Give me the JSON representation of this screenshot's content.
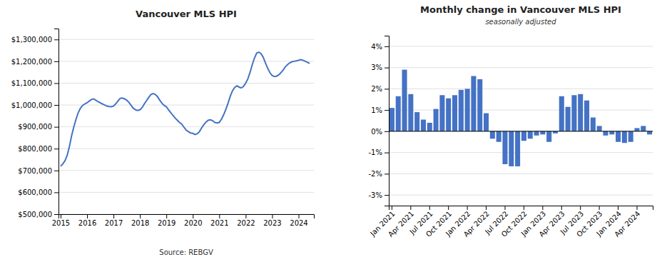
{
  "chart_data": [
    {
      "type": "line",
      "title": "Vancouver MLS HPI",
      "annotations": [
        "Source: REBGV"
      ],
      "color": "#4472C4",
      "x": [
        2015.0,
        2015.083,
        2015.167,
        2015.25,
        2015.333,
        2015.417,
        2015.5,
        2015.583,
        2015.667,
        2015.75,
        2015.833,
        2015.917,
        2016.0,
        2016.083,
        2016.167,
        2016.25,
        2016.333,
        2016.417,
        2016.5,
        2016.583,
        2016.667,
        2016.75,
        2016.833,
        2016.917,
        2017.0,
        2017.083,
        2017.167,
        2017.25,
        2017.333,
        2017.417,
        2017.5,
        2017.583,
        2017.667,
        2017.75,
        2017.833,
        2017.917,
        2018.0,
        2018.083,
        2018.167,
        2018.25,
        2018.333,
        2018.417,
        2018.5,
        2018.583,
        2018.667,
        2018.75,
        2018.833,
        2018.917,
        2019.0,
        2019.083,
        2019.167,
        2019.25,
        2019.333,
        2019.417,
        2019.5,
        2019.583,
        2019.667,
        2019.75,
        2019.833,
        2019.917,
        2020.0,
        2020.083,
        2020.167,
        2020.25,
        2020.333,
        2020.417,
        2020.5,
        2020.583,
        2020.667,
        2020.75,
        2020.833,
        2020.917,
        2021.0,
        2021.083,
        2021.167,
        2021.25,
        2021.333,
        2021.417,
        2021.5,
        2021.583,
        2021.667,
        2021.75,
        2021.833,
        2021.917,
        2022.0,
        2022.083,
        2022.167,
        2022.25,
        2022.333,
        2022.417,
        2022.5,
        2022.583,
        2022.667,
        2022.75,
        2022.833,
        2022.917,
        2023.0,
        2023.083,
        2023.167,
        2023.25,
        2023.333,
        2023.417,
        2023.5,
        2023.583,
        2023.667,
        2023.75,
        2023.833,
        2023.917,
        2024.0,
        2024.083,
        2024.167,
        2024.25,
        2024.333,
        2024.417
      ],
      "values": [
        720000,
        730000,
        745000,
        770000,
        810000,
        860000,
        900000,
        935000,
        965000,
        985000,
        998000,
        1005000,
        1010000,
        1018000,
        1025000,
        1028000,
        1022000,
        1015000,
        1010000,
        1005000,
        1000000,
        995000,
        993000,
        992000,
        995000,
        1005000,
        1018000,
        1030000,
        1032000,
        1028000,
        1022000,
        1012000,
        998000,
        985000,
        978000,
        975000,
        978000,
        988000,
        1005000,
        1020000,
        1035000,
        1048000,
        1052000,
        1048000,
        1038000,
        1022000,
        1008000,
        998000,
        992000,
        978000,
        965000,
        952000,
        940000,
        930000,
        920000,
        912000,
        898000,
        885000,
        878000,
        872000,
        870000,
        865000,
        868000,
        878000,
        895000,
        910000,
        922000,
        930000,
        932000,
        928000,
        920000,
        918000,
        920000,
        935000,
        955000,
        980000,
        1008000,
        1040000,
        1065000,
        1080000,
        1088000,
        1082000,
        1078000,
        1085000,
        1100000,
        1120000,
        1150000,
        1185000,
        1215000,
        1238000,
        1242000,
        1235000,
        1218000,
        1192000,
        1168000,
        1148000,
        1135000,
        1130000,
        1132000,
        1138000,
        1148000,
        1160000,
        1175000,
        1185000,
        1193000,
        1198000,
        1200000,
        1202000,
        1205000,
        1208000,
        1205000,
        1200000,
        1196000,
        1190000
      ],
      "xlim": [
        2014.92,
        2024.58
      ],
      "xticks": [
        2015,
        2016,
        2017,
        2018,
        2019,
        2020,
        2021,
        2022,
        2023,
        2024
      ],
      "ylim": [
        500000,
        1350000
      ],
      "yticks": [
        {
          "value": 500000,
          "label": "$500,000"
        },
        {
          "value": 600000,
          "label": "$600,000"
        },
        {
          "value": 700000,
          "label": "$700,000"
        },
        {
          "value": 800000,
          "label": "$800,000"
        },
        {
          "value": 900000,
          "label": "$900,000"
        },
        {
          "value": 1000000,
          "label": "$1,000,000"
        },
        {
          "value": 1100000,
          "label": "$1,100,000"
        },
        {
          "value": 1200000,
          "label": "$1,200,000"
        },
        {
          "value": 1300000,
          "label": "$1,300,000"
        }
      ],
      "grid": true
    },
    {
      "type": "bar",
      "title": "Monthly change in Vancouver MLS HPI",
      "subtitle": "seasonally adjusted",
      "color": "#4472C4",
      "categories": [
        "Jan 2021",
        null,
        null,
        "Apr 2021",
        null,
        null,
        "Jul 2021",
        null,
        null,
        "Oct 2021",
        null,
        null,
        "Jan 2022",
        null,
        null,
        "Apr 2022",
        null,
        null,
        "Jul 2022",
        null,
        null,
        "Oct 2022",
        null,
        null,
        "Jan 2023",
        null,
        null,
        "Apr 2023",
        null,
        null,
        "Jul 2023",
        null,
        null,
        "Oct 2023",
        null,
        null,
        "Jan 2024",
        null,
        null,
        "Apr 2024",
        null,
        null
      ],
      "values": [
        1.1,
        1.65,
        2.9,
        1.75,
        0.9,
        0.55,
        0.4,
        1.05,
        1.7,
        1.55,
        1.7,
        1.95,
        2.0,
        2.6,
        2.45,
        0.85,
        -0.35,
        -0.5,
        -1.55,
        -1.65,
        -1.65,
        -0.45,
        -0.35,
        -0.2,
        -0.15,
        -0.5,
        -0.1,
        1.65,
        1.15,
        1.7,
        1.75,
        1.45,
        0.65,
        0.25,
        -0.2,
        -0.15,
        -0.5,
        -0.55,
        -0.5,
        0.15,
        0.25,
        -0.15
      ],
      "ylim": [
        -3.5,
        4.5
      ],
      "yticks": [
        {
          "value": -3,
          "label": "-3%"
        },
        {
          "value": -2,
          "label": "-2%"
        },
        {
          "value": -1,
          "label": "-1%"
        },
        {
          "value": 0,
          "label": "0%"
        },
        {
          "value": 1,
          "label": "1%"
        },
        {
          "value": 2,
          "label": "2%"
        },
        {
          "value": 3,
          "label": "3%"
        },
        {
          "value": 4,
          "label": "4%"
        }
      ],
      "grid": true
    }
  ]
}
